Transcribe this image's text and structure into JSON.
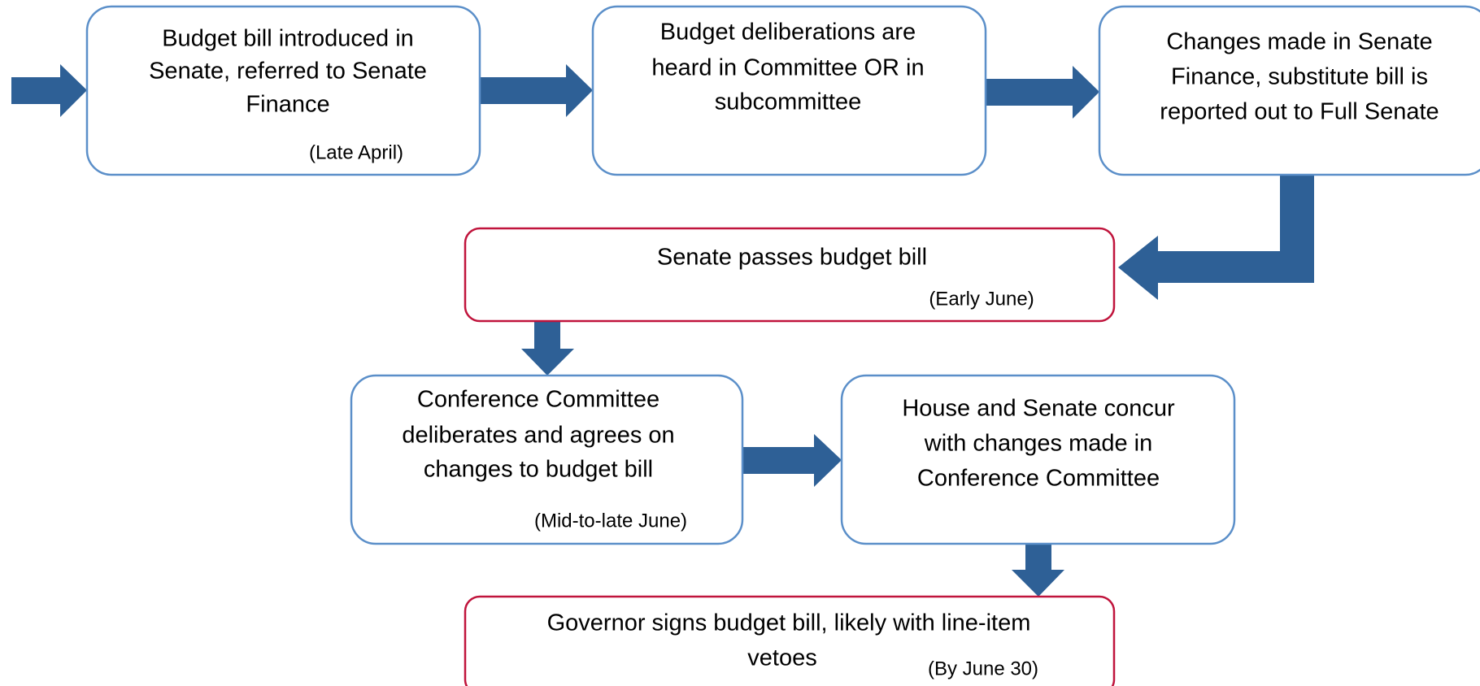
{
  "nodes": [
    {
      "lines": [
        "Budget bill introduced in",
        "Senate, referred to Senate",
        "Finance"
      ],
      "note": "(Late April)"
    },
    {
      "lines": [
        "Budget deliberations are",
        "heard in Committee OR in",
        "subcommittee"
      ]
    },
    {
      "lines": [
        "Changes made in Senate",
        "Finance, substitute bill is",
        "reported out to Full Senate"
      ]
    },
    {
      "lines": [
        "Senate passes budget bill"
      ],
      "note": "(Early June)"
    },
    {
      "lines": [
        "Conference Committee",
        "deliberates and agrees on",
        "changes to budget bill"
      ],
      "note": "(Mid-to-late June)"
    },
    {
      "lines": [
        "House and Senate concur",
        "with changes made in",
        "Conference Committee"
      ]
    },
    {
      "lines": [
        "Governor signs budget bill, likely with line-item",
        "vetoes"
      ],
      "note": "(By June 30)"
    }
  ]
}
